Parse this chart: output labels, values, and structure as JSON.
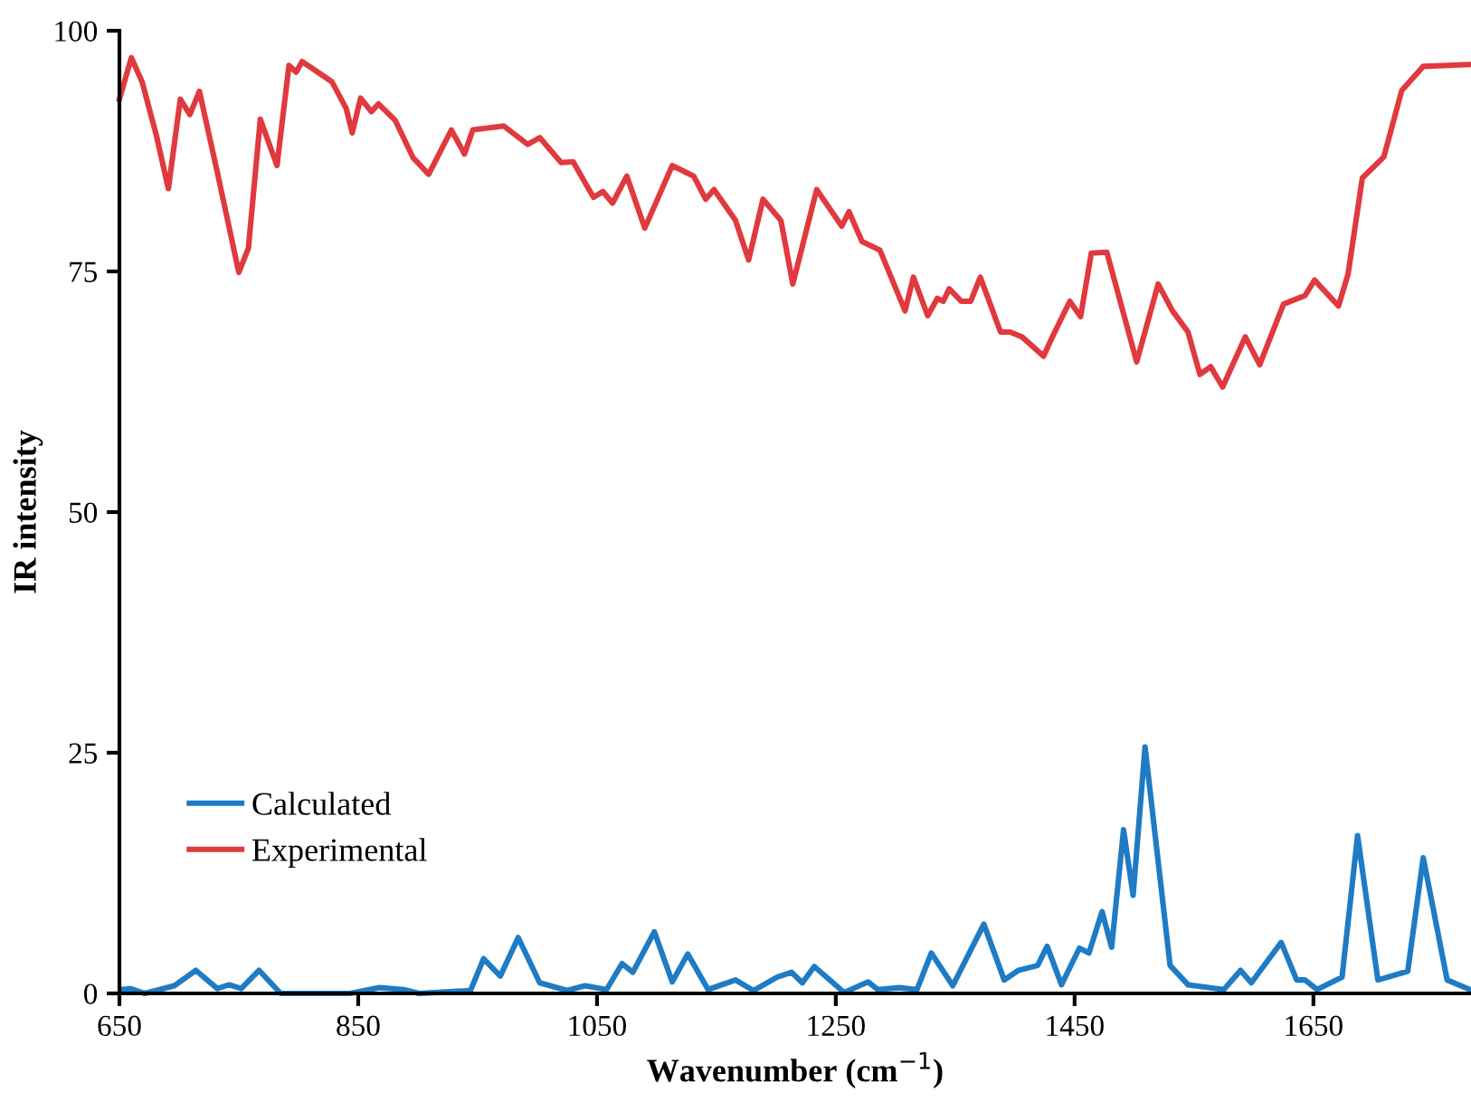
{
  "chart_data": {
    "type": "line",
    "xlabel": "Wavenumber (cm$^{−1}$)",
    "ylabel": "IR intensity",
    "xlim": [
      650,
      1782
    ],
    "xticks": [
      650,
      850,
      1050,
      1250,
      1450,
      1650
    ],
    "ylim": [
      0,
      100
    ],
    "yticks": [
      0,
      25,
      50,
      75,
      100
    ],
    "grid": false,
    "legend": "bottom left",
    "marker": "none",
    "line_style": "solid",
    "series": [
      {
        "name": "Calculated",
        "color": "#1f7bc4",
        "x": [
          651,
          659,
          671,
          696,
          714,
          732,
          742,
          752,
          767,
          785,
          843,
          868,
          888,
          901,
          944,
          955,
          969,
          984,
          1002,
          1025,
          1040,
          1058,
          1071,
          1080,
          1098,
          1113,
          1126,
          1143,
          1166,
          1181,
          1201,
          1213,
          1222,
          1232,
          1257,
          1277,
          1285,
          1303,
          1318,
          1330,
          1348,
          1374,
          1391,
          1403,
          1419,
          1427,
          1439,
          1454,
          1462,
          1473,
          1481,
          1491,
          1499,
          1509,
          1530,
          1545,
          1575,
          1589,
          1598,
          1623,
          1636,
          1643,
          1653,
          1674,
          1687,
          1704,
          1729,
          1742,
          1762,
          1781
        ],
        "values": [
          0.4,
          0.5,
          0,
          0.8,
          2.4,
          0.5,
          0.9,
          0.5,
          2.4,
          0,
          0,
          0.6,
          0.4,
          0,
          0.3,
          3.6,
          1.8,
          5.8,
          1.1,
          0.3,
          0.8,
          0.4,
          3.1,
          2.2,
          6.4,
          1.2,
          4.1,
          0.4,
          1.4,
          0.3,
          1.7,
          2.2,
          1.1,
          2.8,
          0.1,
          1.2,
          0.4,
          0.6,
          0.4,
          4.2,
          0.8,
          7.2,
          1.4,
          2.4,
          2.9,
          4.9,
          0.9,
          4.7,
          4.2,
          8.5,
          4.8,
          17.0,
          10.2,
          25.6,
          2.9,
          0.9,
          0.4,
          2.4,
          1.1,
          5.3,
          1.4,
          1.4,
          0.4,
          1.7,
          16.4,
          1.4,
          2.3,
          14.1,
          1.4,
          0.4
        ]
      },
      {
        "name": "Experimental",
        "color": "#e0393e",
        "x": [
          650,
          660,
          669,
          681,
          691,
          701,
          709,
          717,
          732,
          750,
          758,
          768,
          782,
          792,
          798,
          803,
          828,
          840,
          845,
          852,
          861,
          867,
          881,
          896,
          909,
          928,
          939,
          946,
          972,
          992,
          1002,
          1020,
          1030,
          1047,
          1055,
          1063,
          1075,
          1090,
          1113,
          1131,
          1141,
          1148,
          1166,
          1177,
          1189,
          1204,
          1214,
          1234,
          1255,
          1261,
          1272,
          1287,
          1308,
          1315,
          1327,
          1335,
          1340,
          1345,
          1355,
          1363,
          1371,
          1388,
          1396,
          1406,
          1424,
          1431,
          1446,
          1455,
          1464,
          1477,
          1502,
          1520,
          1532,
          1545,
          1555,
          1564,
          1574,
          1593,
          1605,
          1625,
          1643,
          1651,
          1671,
          1679,
          1691,
          1709,
          1724,
          1742,
          1781
        ],
        "values": [
          92.9,
          97.2,
          94.7,
          89.1,
          83.6,
          92.9,
          91.3,
          93.7,
          85.3,
          74.9,
          77.4,
          90.8,
          86.0,
          96.4,
          95.7,
          96.8,
          94.7,
          91.9,
          89.4,
          93.0,
          91.6,
          92.4,
          90.7,
          86.8,
          85.1,
          89.7,
          87.2,
          89.7,
          90.1,
          88.2,
          88.9,
          86.3,
          86.4,
          82.7,
          83.3,
          82.1,
          84.9,
          79.5,
          86.0,
          84.9,
          82.5,
          83.5,
          80.3,
          76.2,
          82.5,
          80.3,
          73.7,
          83.5,
          79.7,
          81.2,
          78.1,
          77.2,
          70.9,
          74.4,
          70.4,
          72.2,
          71.9,
          73.2,
          71.9,
          71.9,
          74.4,
          68.7,
          68.7,
          68.2,
          66.2,
          68.1,
          71.9,
          70.3,
          76.9,
          77.0,
          65.6,
          73.7,
          70.9,
          68.7,
          64.3,
          65.1,
          63.0,
          68.2,
          65.3,
          71.6,
          72.5,
          74.1,
          71.4,
          74.7,
          84.7,
          86.9,
          93.8,
          96.3,
          96.5
        ]
      }
    ]
  }
}
